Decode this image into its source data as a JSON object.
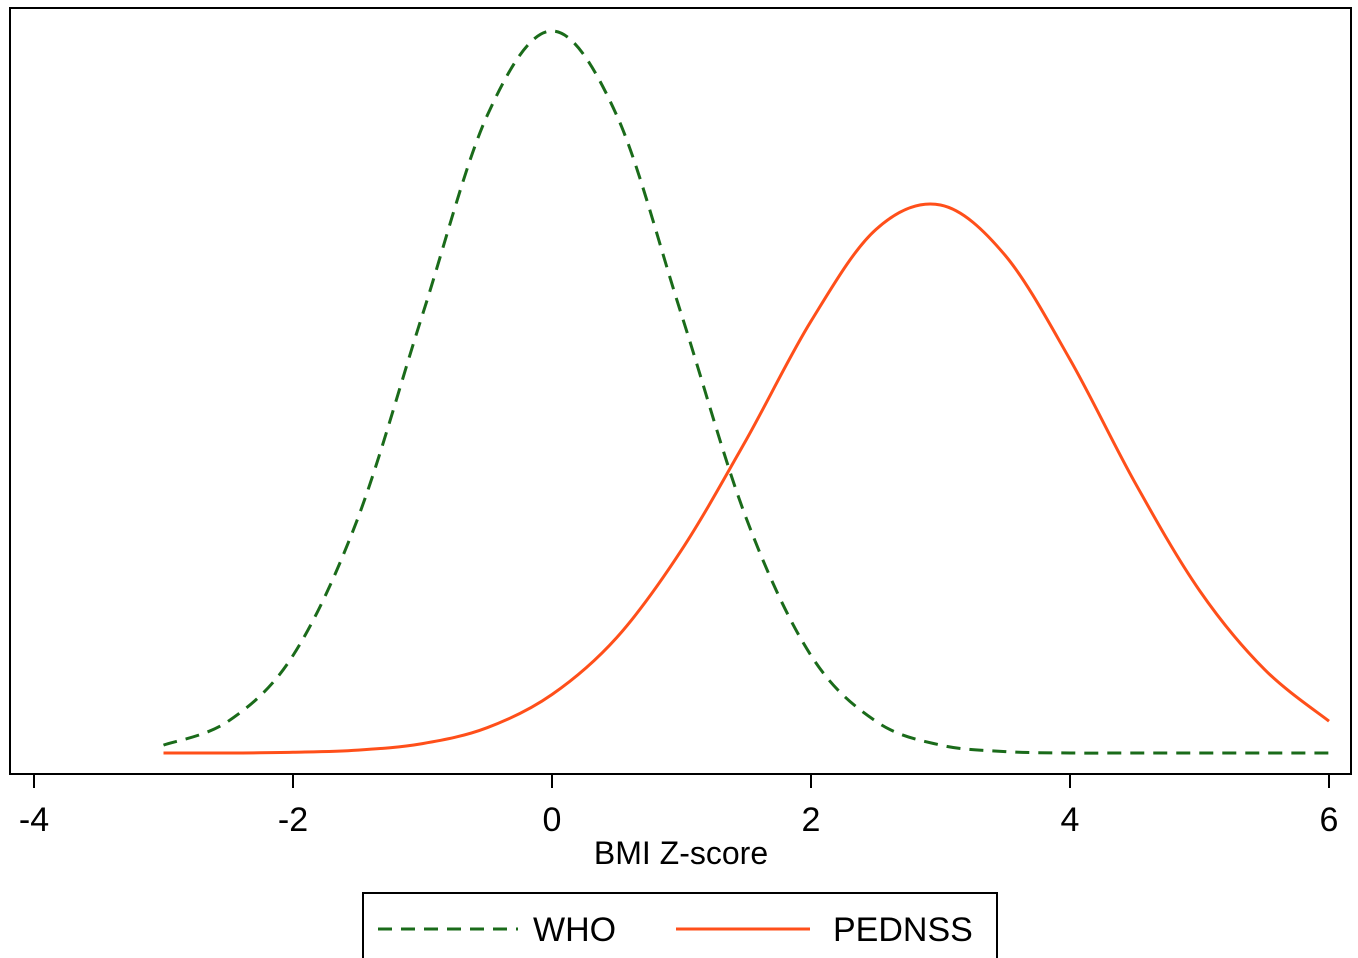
{
  "chart_data": {
    "type": "line",
    "title": "",
    "xlabel": "BMI Z-score",
    "ylabel": "",
    "xlim": [
      -4,
      6
    ],
    "ylim": [
      0,
      1
    ],
    "xticks": [
      "-4",
      "-2",
      "0",
      "2",
      "4",
      "6"
    ],
    "grid": false,
    "legend": {
      "position": "bottom",
      "entries": [
        "WHO",
        "PEDNSS"
      ]
    },
    "series": [
      {
        "name": "WHO",
        "color": "#1a6b1a",
        "style": "dashed",
        "x": [
          -3,
          -2.5,
          -2,
          -1.5,
          -1,
          -0.5,
          0,
          0.5,
          1,
          1.5,
          2,
          2.5,
          3,
          3.5,
          4,
          4.5,
          5,
          5.5,
          6
        ],
        "y": [
          0.011,
          0.044,
          0.135,
          0.325,
          0.607,
          0.883,
          1.0,
          0.883,
          0.607,
          0.325,
          0.135,
          0.044,
          0.011,
          0.002,
          0.0,
          0.0,
          0.0,
          0.0,
          0.0
        ]
      },
      {
        "name": "PEDNSS",
        "color": "#ff4f1a",
        "style": "solid",
        "x": [
          -3,
          -2.5,
          -2,
          -1.5,
          -1,
          -0.5,
          0,
          0.5,
          1,
          1.5,
          2,
          2.5,
          3,
          3.5,
          4,
          4.5,
          5,
          5.5,
          6
        ],
        "y": [
          0.0,
          0.0,
          0.001,
          0.004,
          0.013,
          0.035,
          0.081,
          0.16,
          0.281,
          0.434,
          0.598,
          0.725,
          0.759,
          0.689,
          0.545,
          0.375,
          0.225,
          0.116,
          0.044
        ]
      }
    ]
  }
}
